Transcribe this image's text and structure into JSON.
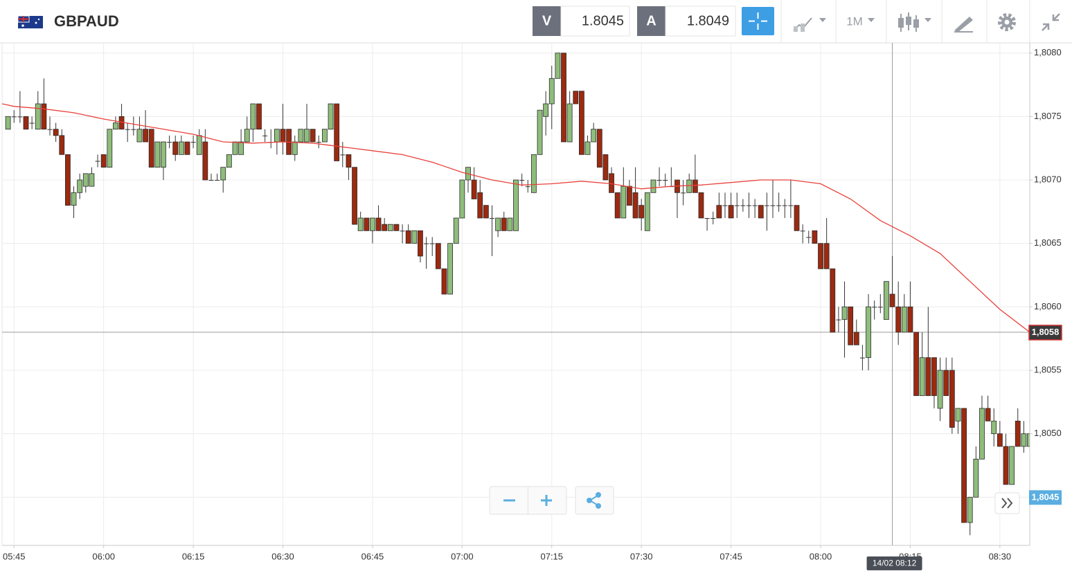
{
  "header": {
    "symbol": "GBPAUD",
    "bid_label": "V",
    "bid": 1.8045,
    "ask_label": "A",
    "ask": 1.8049,
    "timeframe": "1M"
  },
  "chart_data": {
    "type": "candlestick",
    "x": [
      "05:44",
      "05:45",
      "05:46",
      "05:47",
      "05:48",
      "05:49",
      "05:50",
      "05:51",
      "05:52",
      "05:53",
      "05:54",
      "05:55",
      "05:56",
      "05:57",
      "05:58",
      "05:59",
      "06:00",
      "06:01",
      "06:02",
      "06:03",
      "06:04",
      "06:05",
      "06:06",
      "06:07",
      "06:08",
      "06:09",
      "06:10",
      "06:11",
      "06:12",
      "06:13",
      "06:14",
      "06:15",
      "06:16",
      "06:17",
      "06:18",
      "06:19",
      "06:20",
      "06:21",
      "06:22",
      "06:23",
      "06:24",
      "06:25",
      "06:26",
      "06:27",
      "06:28",
      "06:29",
      "06:30",
      "06:31",
      "06:32",
      "06:33",
      "06:34",
      "06:35",
      "06:36",
      "06:37",
      "06:38",
      "06:39",
      "06:40",
      "06:41",
      "06:42",
      "06:43",
      "06:44",
      "06:45",
      "06:46",
      "06:47",
      "06:48",
      "06:49",
      "06:50",
      "06:51",
      "06:52",
      "06:53",
      "06:54",
      "06:55",
      "06:56",
      "06:57",
      "06:58",
      "06:59",
      "07:00",
      "07:01",
      "07:02",
      "07:03",
      "07:04",
      "07:05",
      "07:06",
      "07:07",
      "07:08",
      "07:09",
      "07:10",
      "07:11",
      "07:12",
      "07:13",
      "07:14",
      "07:15",
      "07:16",
      "07:17",
      "07:18",
      "07:19",
      "07:20",
      "07:21",
      "07:22",
      "07:23",
      "07:24",
      "07:25",
      "07:26",
      "07:27",
      "07:28",
      "07:29",
      "07:30",
      "07:31",
      "07:32",
      "07:33",
      "07:34",
      "07:35",
      "07:36",
      "07:37",
      "07:38",
      "07:39",
      "07:40",
      "07:41",
      "07:42",
      "07:43",
      "07:44",
      "07:45",
      "07:46",
      "07:47",
      "07:48",
      "07:49",
      "07:50",
      "07:51",
      "07:52",
      "07:53",
      "07:54",
      "07:55",
      "07:56",
      "07:57",
      "07:58",
      "07:59",
      "08:00",
      "08:01",
      "08:02",
      "08:03",
      "08:04",
      "08:05",
      "08:06",
      "08:07",
      "08:08",
      "08:09",
      "08:10",
      "08:11",
      "08:12",
      "08:13",
      "08:14",
      "08:15",
      "08:16",
      "08:17",
      "08:18",
      "08:19",
      "08:20",
      "08:21",
      "08:22",
      "08:23",
      "08:24",
      "08:25",
      "08:26",
      "08:27",
      "08:28",
      "08:29",
      "08:30",
      "08:31",
      "08:32",
      "08:33",
      "08:34",
      "08:35"
    ],
    "open": [
      1.8074,
      1.8075,
      1.8075,
      1.8075,
      1.80745,
      1.8074,
      1.8076,
      1.8074,
      1.8074,
      1.80735,
      1.8072,
      1.8068,
      1.8069,
      1.80695,
      1.80695,
      1.80715,
      1.8072,
      1.8071,
      1.8074,
      1.8075,
      1.8074,
      1.8074,
      1.8073,
      1.8074,
      1.8074,
      1.8071,
      1.8071,
      1.8073,
      1.8073,
      1.8072,
      1.8073,
      1.8073,
      1.8072,
      1.8073,
      1.807,
      1.807,
      1.807,
      1.8071,
      1.8072,
      1.8072,
      1.8073,
      1.8074,
      1.8076,
      1.80735,
      1.8073,
      1.8073,
      1.8074,
      1.8074,
      1.8072,
      1.8073,
      1.8073,
      1.8074,
      1.8073,
      1.8073,
      1.8074,
      1.8076,
      1.8072,
      1.8072,
      1.8071,
      1.8066,
      1.8067,
      1.8066,
      1.8067,
      1.80665,
      1.8066,
      1.80665,
      1.8066,
      1.8066,
      1.8065,
      1.8066,
      1.8065,
      1.8065,
      1.8065,
      1.8063,
      1.8061,
      1.8065,
      1.8067,
      1.807,
      1.807,
      1.8069,
      1.8068,
      1.8067,
      1.8066,
      1.8067,
      1.8066,
      1.8066,
      1.807,
      1.80695,
      1.8069,
      1.8072,
      1.8075,
      1.8076,
      1.8078,
      1.808,
      1.8073,
      1.8077,
      1.8077,
      1.8072,
      1.8073,
      1.8074,
      1.8072,
      1.80705,
      1.8069,
      1.8067,
      1.80695,
      1.8069,
      1.8068,
      1.8066,
      1.8069,
      1.807,
      1.807,
      1.80695,
      1.807,
      1.8069,
      1.8069,
      1.807,
      1.8069,
      1.8067,
      1.8067,
      1.8068,
      1.8068,
      1.8068,
      1.8068,
      1.8068,
      1.8068,
      1.8068,
      1.8068,
      1.8068,
      1.8068,
      1.8068,
      1.8068,
      1.8068,
      1.8068,
      1.8066,
      1.80655,
      1.8066,
      1.8065,
      1.8065,
      1.8063,
      1.8059,
      1.8059,
      1.806,
      1.8058,
      1.8056,
      1.8056,
      1.806,
      1.806,
      1.8059,
      1.8061,
      1.806,
      1.8058,
      1.806,
      1.8058,
      1.8053,
      1.8056,
      1.8056,
      1.8052,
      1.8055,
      1.8055,
      1.8051,
      1.8052,
      1.8043,
      1.8045,
      1.8048,
      1.8052,
      1.805,
      1.805,
      1.8049,
      1.8046,
      1.8051,
      1.8049,
      1.8049
    ],
    "high": [
      1.8075,
      1.80755,
      1.8077,
      1.8075,
      1.8075,
      1.8077,
      1.8078,
      1.8075,
      1.80745,
      1.8074,
      1.8072,
      1.80695,
      1.80705,
      1.80705,
      1.8071,
      1.8072,
      1.8072,
      1.8074,
      1.8075,
      1.8076,
      1.80745,
      1.8075,
      1.8075,
      1.80755,
      1.8074,
      1.8073,
      1.8073,
      1.80735,
      1.80735,
      1.80735,
      1.8073,
      1.80735,
      1.8074,
      1.8074,
      1.80705,
      1.80705,
      1.8071,
      1.8072,
      1.8073,
      1.8074,
      1.8075,
      1.8076,
      1.8076,
      1.8074,
      1.8074,
      1.8074,
      1.8076,
      1.8074,
      1.80735,
      1.8074,
      1.8076,
      1.8074,
      1.80735,
      1.8074,
      1.8076,
      1.8076,
      1.8073,
      1.8072,
      1.8071,
      1.80675,
      1.8067,
      1.8067,
      1.8068,
      1.8067,
      1.80665,
      1.80665,
      1.80665,
      1.80665,
      1.8066,
      1.8066,
      1.80655,
      1.80655,
      1.8065,
      1.8063,
      1.8065,
      1.8067,
      1.807,
      1.8071,
      1.8071,
      1.807,
      1.8068,
      1.8068,
      1.8067,
      1.80675,
      1.8067,
      1.807,
      1.80705,
      1.807,
      1.8072,
      1.80755,
      1.8077,
      1.8079,
      1.808,
      1.808,
      1.8077,
      1.8077,
      1.8077,
      1.80735,
      1.80745,
      1.8074,
      1.8072,
      1.8071,
      1.8069,
      1.8071,
      1.807,
      1.8071,
      1.80685,
      1.8069,
      1.807,
      1.8071,
      1.80705,
      1.8071,
      1.807,
      1.807,
      1.80705,
      1.8072,
      1.8069,
      1.8067,
      1.80675,
      1.8069,
      1.8069,
      1.8069,
      1.8069,
      1.80685,
      1.8069,
      1.80685,
      1.8068,
      1.8069,
      1.807,
      1.8069,
      1.80685,
      1.807,
      1.8068,
      1.80665,
      1.8066,
      1.8066,
      1.8065,
      1.8067,
      1.8063,
      1.806,
      1.8062,
      1.806,
      1.8059,
      1.8057,
      1.8061,
      1.80605,
      1.8061,
      1.8062,
      1.8064,
      1.8062,
      1.8061,
      1.8062,
      1.8058,
      1.8058,
      1.806,
      1.8056,
      1.8056,
      1.8056,
      1.8056,
      1.8052,
      1.8052,
      1.8045,
      1.8049,
      1.8053,
      1.8053,
      1.8052,
      1.8051,
      1.805,
      1.8049,
      1.8052,
      1.8051,
      1.8051
    ],
    "low": [
      1.8074,
      1.80745,
      1.80745,
      1.8074,
      1.8074,
      1.8074,
      1.8074,
      1.80735,
      1.8073,
      1.8072,
      1.8068,
      1.8067,
      1.80685,
      1.8069,
      1.80695,
      1.8071,
      1.8071,
      1.8071,
      1.8074,
      1.8074,
      1.8073,
      1.80735,
      1.8073,
      1.8073,
      1.8071,
      1.8071,
      1.807,
      1.80725,
      1.80715,
      1.8072,
      1.8072,
      1.80725,
      1.8072,
      1.807,
      1.807,
      1.807,
      1.8069,
      1.8071,
      1.8072,
      1.8072,
      1.8073,
      1.8073,
      1.8074,
      1.8073,
      1.80725,
      1.8072,
      1.8072,
      1.8072,
      1.80715,
      1.8073,
      1.8073,
      1.8073,
      1.80725,
      1.8073,
      1.8074,
      1.80715,
      1.8071,
      1.807,
      1.80665,
      1.8066,
      1.8066,
      1.8065,
      1.8066,
      1.8066,
      1.8066,
      1.8066,
      1.8065,
      1.8065,
      1.8065,
      1.80635,
      1.8063,
      1.8064,
      1.8063,
      1.8061,
      1.8061,
      1.8065,
      1.8067,
      1.8069,
      1.80685,
      1.8067,
      1.8067,
      1.8064,
      1.80655,
      1.8066,
      1.8066,
      1.8066,
      1.80695,
      1.8069,
      1.8069,
      1.8072,
      1.80735,
      1.8074,
      1.8078,
      1.8073,
      1.8073,
      1.8076,
      1.8072,
      1.8072,
      1.8073,
      1.8071,
      1.807,
      1.8069,
      1.8067,
      1.8067,
      1.8068,
      1.8067,
      1.8066,
      1.8066,
      1.8069,
      1.80695,
      1.80695,
      1.80695,
      1.8067,
      1.8068,
      1.8069,
      1.8069,
      1.8067,
      1.8066,
      1.80665,
      1.8067,
      1.8067,
      1.8067,
      1.8067,
      1.80675,
      1.8067,
      1.8067,
      1.8067,
      1.8066,
      1.8067,
      1.80675,
      1.8067,
      1.8067,
      1.8066,
      1.8065,
      1.8065,
      1.8065,
      1.8063,
      1.8063,
      1.8058,
      1.8058,
      1.8056,
      1.8057,
      1.8057,
      1.8055,
      1.8055,
      1.8059,
      1.80595,
      1.8059,
      1.806,
      1.8057,
      1.8058,
      1.8058,
      1.8053,
      1.8053,
      1.8053,
      1.8052,
      1.8051,
      1.8053,
      1.805,
      1.805,
      1.8043,
      1.8042,
      1.8045,
      1.8048,
      1.8051,
      1.8049,
      1.8049,
      1.8046,
      1.8046,
      1.8049,
      1.80485,
      1.8047
    ],
    "close": [
      1.8075,
      1.8075,
      1.8075,
      1.8074,
      1.80745,
      1.8076,
      1.8074,
      1.8074,
      1.80735,
      1.8072,
      1.8068,
      1.8069,
      1.807,
      1.80705,
      1.80705,
      1.80715,
      1.8071,
      1.8074,
      1.80745,
      1.8074,
      1.8074,
      1.8074,
      1.8074,
      1.8073,
      1.8071,
      1.8073,
      1.8073,
      1.8073,
      1.8072,
      1.8073,
      1.8072,
      1.8073,
      1.80735,
      1.807,
      1.807,
      1.807,
      1.8071,
      1.8072,
      1.8073,
      1.8073,
      1.8074,
      1.8076,
      1.8074,
      1.80735,
      1.8073,
      1.8074,
      1.8073,
      1.8072,
      1.8073,
      1.8074,
      1.8074,
      1.8073,
      1.8073,
      1.8074,
      1.8076,
      1.80715,
      1.8072,
      1.8071,
      1.80665,
      1.8067,
      1.8066,
      1.8067,
      1.8066,
      1.8066,
      1.80665,
      1.8066,
      1.8066,
      1.8065,
      1.8066,
      1.8064,
      1.8065,
      1.8065,
      1.8063,
      1.8061,
      1.8065,
      1.8067,
      1.807,
      1.8071,
      1.80685,
      1.8067,
      1.8067,
      1.8067,
      1.8067,
      1.8066,
      1.8067,
      1.807,
      1.807,
      1.80695,
      1.8072,
      1.80755,
      1.8076,
      1.8078,
      1.808,
      1.8073,
      1.8076,
      1.8076,
      1.8072,
      1.8073,
      1.8074,
      1.8071,
      1.807,
      1.8069,
      1.8067,
      1.80695,
      1.8068,
      1.8067,
      1.8067,
      1.8069,
      1.807,
      1.807,
      1.807,
      1.80695,
      1.8069,
      1.8069,
      1.807,
      1.8069,
      1.8067,
      1.8067,
      1.8067,
      1.8067,
      1.8068,
      1.8067,
      1.8068,
      1.8068,
      1.8068,
      1.8068,
      1.8067,
      1.8068,
      1.8068,
      1.8068,
      1.8068,
      1.8068,
      1.8066,
      1.8066,
      1.80655,
      1.8065,
      1.8063,
      1.8063,
      1.8058,
      1.8059,
      1.806,
      1.8057,
      1.8057,
      1.8056,
      1.806,
      1.806,
      1.806,
      1.8062,
      1.806,
      1.8058,
      1.806,
      1.8058,
      1.8053,
      1.8056,
      1.8053,
      1.8053,
      1.8055,
      1.8053,
      1.80505,
      1.8052,
      1.8043,
      1.8045,
      1.8048,
      1.8052,
      1.8051,
      1.8051,
      1.8049,
      1.8046,
      1.8049,
      1.8049,
      1.805,
      1.805
    ],
    "up_color": "#8fbd7b",
    "down_color": "#9b2a10",
    "xlim": [
      "05:43",
      "08:35"
    ],
    "xticks": [
      "05:45",
      "06:00",
      "06:15",
      "06:30",
      "06:45",
      "07:00",
      "07:15",
      "07:30",
      "07:45",
      "08:00",
      "08:15",
      "08:30"
    ],
    "ylim": [
      1.80412,
      1.80808
    ],
    "yticks": [
      {
        "value": 1.8045,
        "label": "1,8045"
      },
      {
        "value": 1.805,
        "label": "1,8050"
      },
      {
        "value": 1.8055,
        "label": "1,8055"
      },
      {
        "value": 1.806,
        "label": "1,8060"
      },
      {
        "value": 1.8065,
        "label": "1,8065"
      },
      {
        "value": 1.807,
        "label": "1,8070"
      },
      {
        "value": 1.8075,
        "label": "1,8075"
      },
      {
        "value": 1.808,
        "label": "1,8080"
      }
    ],
    "grid": true,
    "moving_average": {
      "color": "#e8403a",
      "x": [
        "05:43",
        "05:45",
        "05:50",
        "05:55",
        "06:00",
        "06:05",
        "06:10",
        "06:15",
        "06:20",
        "06:25",
        "06:30",
        "06:35",
        "06:40",
        "06:45",
        "06:50",
        "06:55",
        "07:00",
        "07:05",
        "07:10",
        "07:15",
        "07:20",
        "07:25",
        "07:30",
        "07:35",
        "07:40",
        "07:45",
        "07:50",
        "07:55",
        "08:00",
        "08:05",
        "08:10",
        "08:15",
        "08:20",
        "08:25",
        "08:30",
        "08:35"
      ],
      "values": [
        1.8076,
        1.80758,
        1.80756,
        1.80753,
        1.80748,
        1.80744,
        1.8074,
        1.80736,
        1.8073,
        1.80729,
        1.8073,
        1.80729,
        1.80726,
        1.80723,
        1.8072,
        1.80714,
        1.80706,
        1.807,
        1.80696,
        1.80697,
        1.80699,
        1.80697,
        1.80693,
        1.80695,
        1.80696,
        1.80698,
        1.807,
        1.807,
        1.80697,
        1.80685,
        1.80668,
        1.80656,
        1.80642,
        1.8062,
        1.80598,
        1.8058
      ]
    },
    "price_lines": [
      {
        "value": 1.8058,
        "label": "1,8058",
        "color": "#d32f2f",
        "line": true
      },
      {
        "value": 1.8045,
        "label": "1,8045",
        "color": "#5aaee0",
        "line": false
      }
    ],
    "crosshair": {
      "x": "08:12",
      "label": "14/02 08:12"
    }
  }
}
